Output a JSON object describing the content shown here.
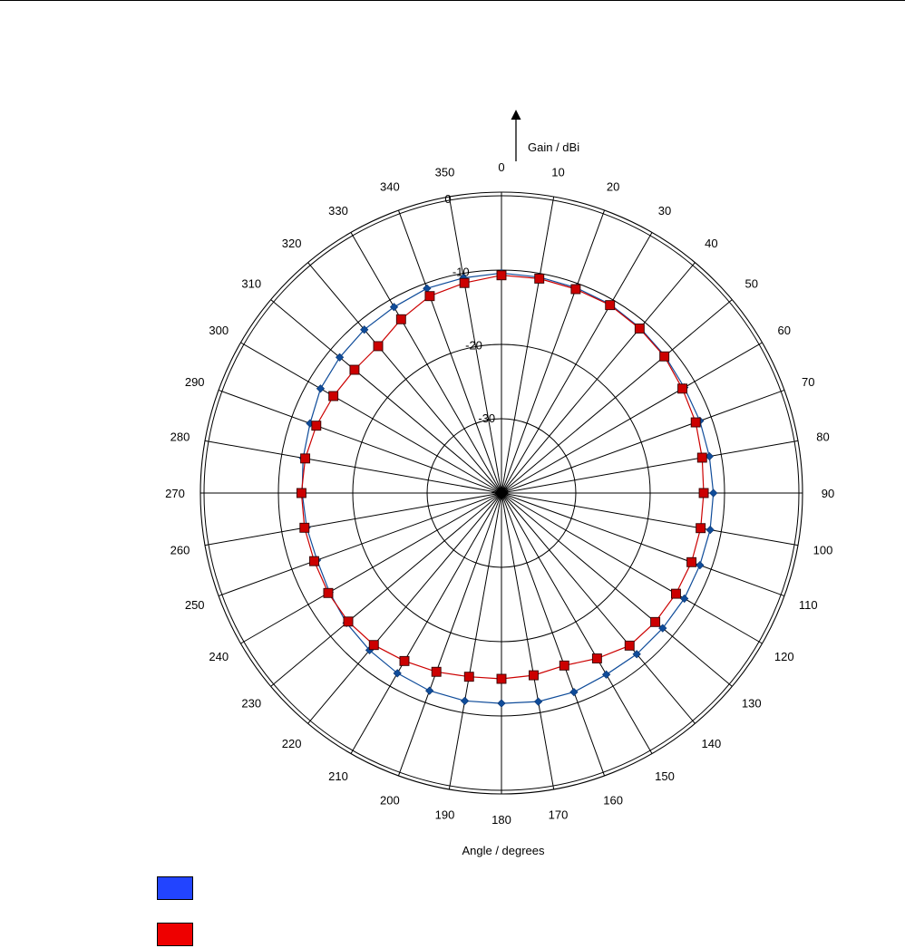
{
  "chart_data": {
    "type": "polar-line",
    "title": "",
    "radial_axis_label": "Gain / dBi",
    "angular_axis_label": "Angle / degrees",
    "radial_range": [
      -40,
      0
    ],
    "radial_ticks": [
      0,
      -10,
      -20,
      -30,
      -40
    ],
    "angular_ticks": [
      0,
      10,
      20,
      30,
      40,
      50,
      60,
      70,
      80,
      90,
      100,
      110,
      120,
      130,
      140,
      150,
      160,
      170,
      180,
      190,
      200,
      210,
      220,
      230,
      240,
      250,
      260,
      270,
      280,
      290,
      300,
      310,
      320,
      330,
      340,
      350
    ],
    "angular_direction": "clockwise",
    "zero_angle": "top",
    "grid": true,
    "legend_placement": "bottom-left",
    "series": [
      {
        "color": "#0f4c9a",
        "legend_color": "#2244ff",
        "marker": "diamond",
        "angles": [
          0,
          10,
          20,
          30,
          40,
          50,
          60,
          70,
          80,
          90,
          100,
          110,
          120,
          130,
          140,
          150,
          160,
          170,
          180,
          190,
          200,
          210,
          220,
          230,
          240,
          250,
          260,
          270,
          280,
          290,
          300,
          310,
          320,
          330,
          340,
          350
        ],
        "values": [
          -10.4,
          -10.5,
          -10.6,
          -10.7,
          -11.0,
          -11.3,
          -11.6,
          -11.6,
          -11.6,
          -11.5,
          -11.5,
          -11.6,
          -11.6,
          -11.7,
          -11.7,
          -11.8,
          -11.5,
          -11.5,
          -11.7,
          -11.6,
          -11.7,
          -12.0,
          -12.4,
          -12.8,
          -13.3,
          -13.6,
          -13.4,
          -13.2,
          -12.9,
          -12.6,
          -11.9,
          -11.6,
          -11.3,
          -11.1,
          -10.7,
          -10.6
        ]
      },
      {
        "color": "#cc0000",
        "legend_color": "#ee0000",
        "marker": "square",
        "angles": [
          0,
          10,
          20,
          30,
          40,
          50,
          60,
          70,
          80,
          90,
          100,
          110,
          120,
          130,
          140,
          150,
          160,
          170,
          180,
          190,
          200,
          210,
          220,
          230,
          240,
          250,
          260,
          270,
          280,
          290,
          300,
          310,
          320,
          330,
          340,
          350
        ],
        "values": [
          -10.7,
          -10.7,
          -10.8,
          -10.8,
          -11.1,
          -11.4,
          -11.9,
          -12.2,
          -12.6,
          -12.8,
          -12.8,
          -12.8,
          -12.9,
          -13.0,
          -13.2,
          -14.3,
          -15.3,
          -15.1,
          -15.0,
          -14.9,
          -14.4,
          -13.9,
          -13.3,
          -13.1,
          -13.1,
          -13.2,
          -13.1,
          -13.1,
          -13.2,
          -13.5,
          -13.9,
          -14.2,
          -14.2,
          -13.0,
          -11.8,
          -11.3
        ]
      }
    ]
  }
}
